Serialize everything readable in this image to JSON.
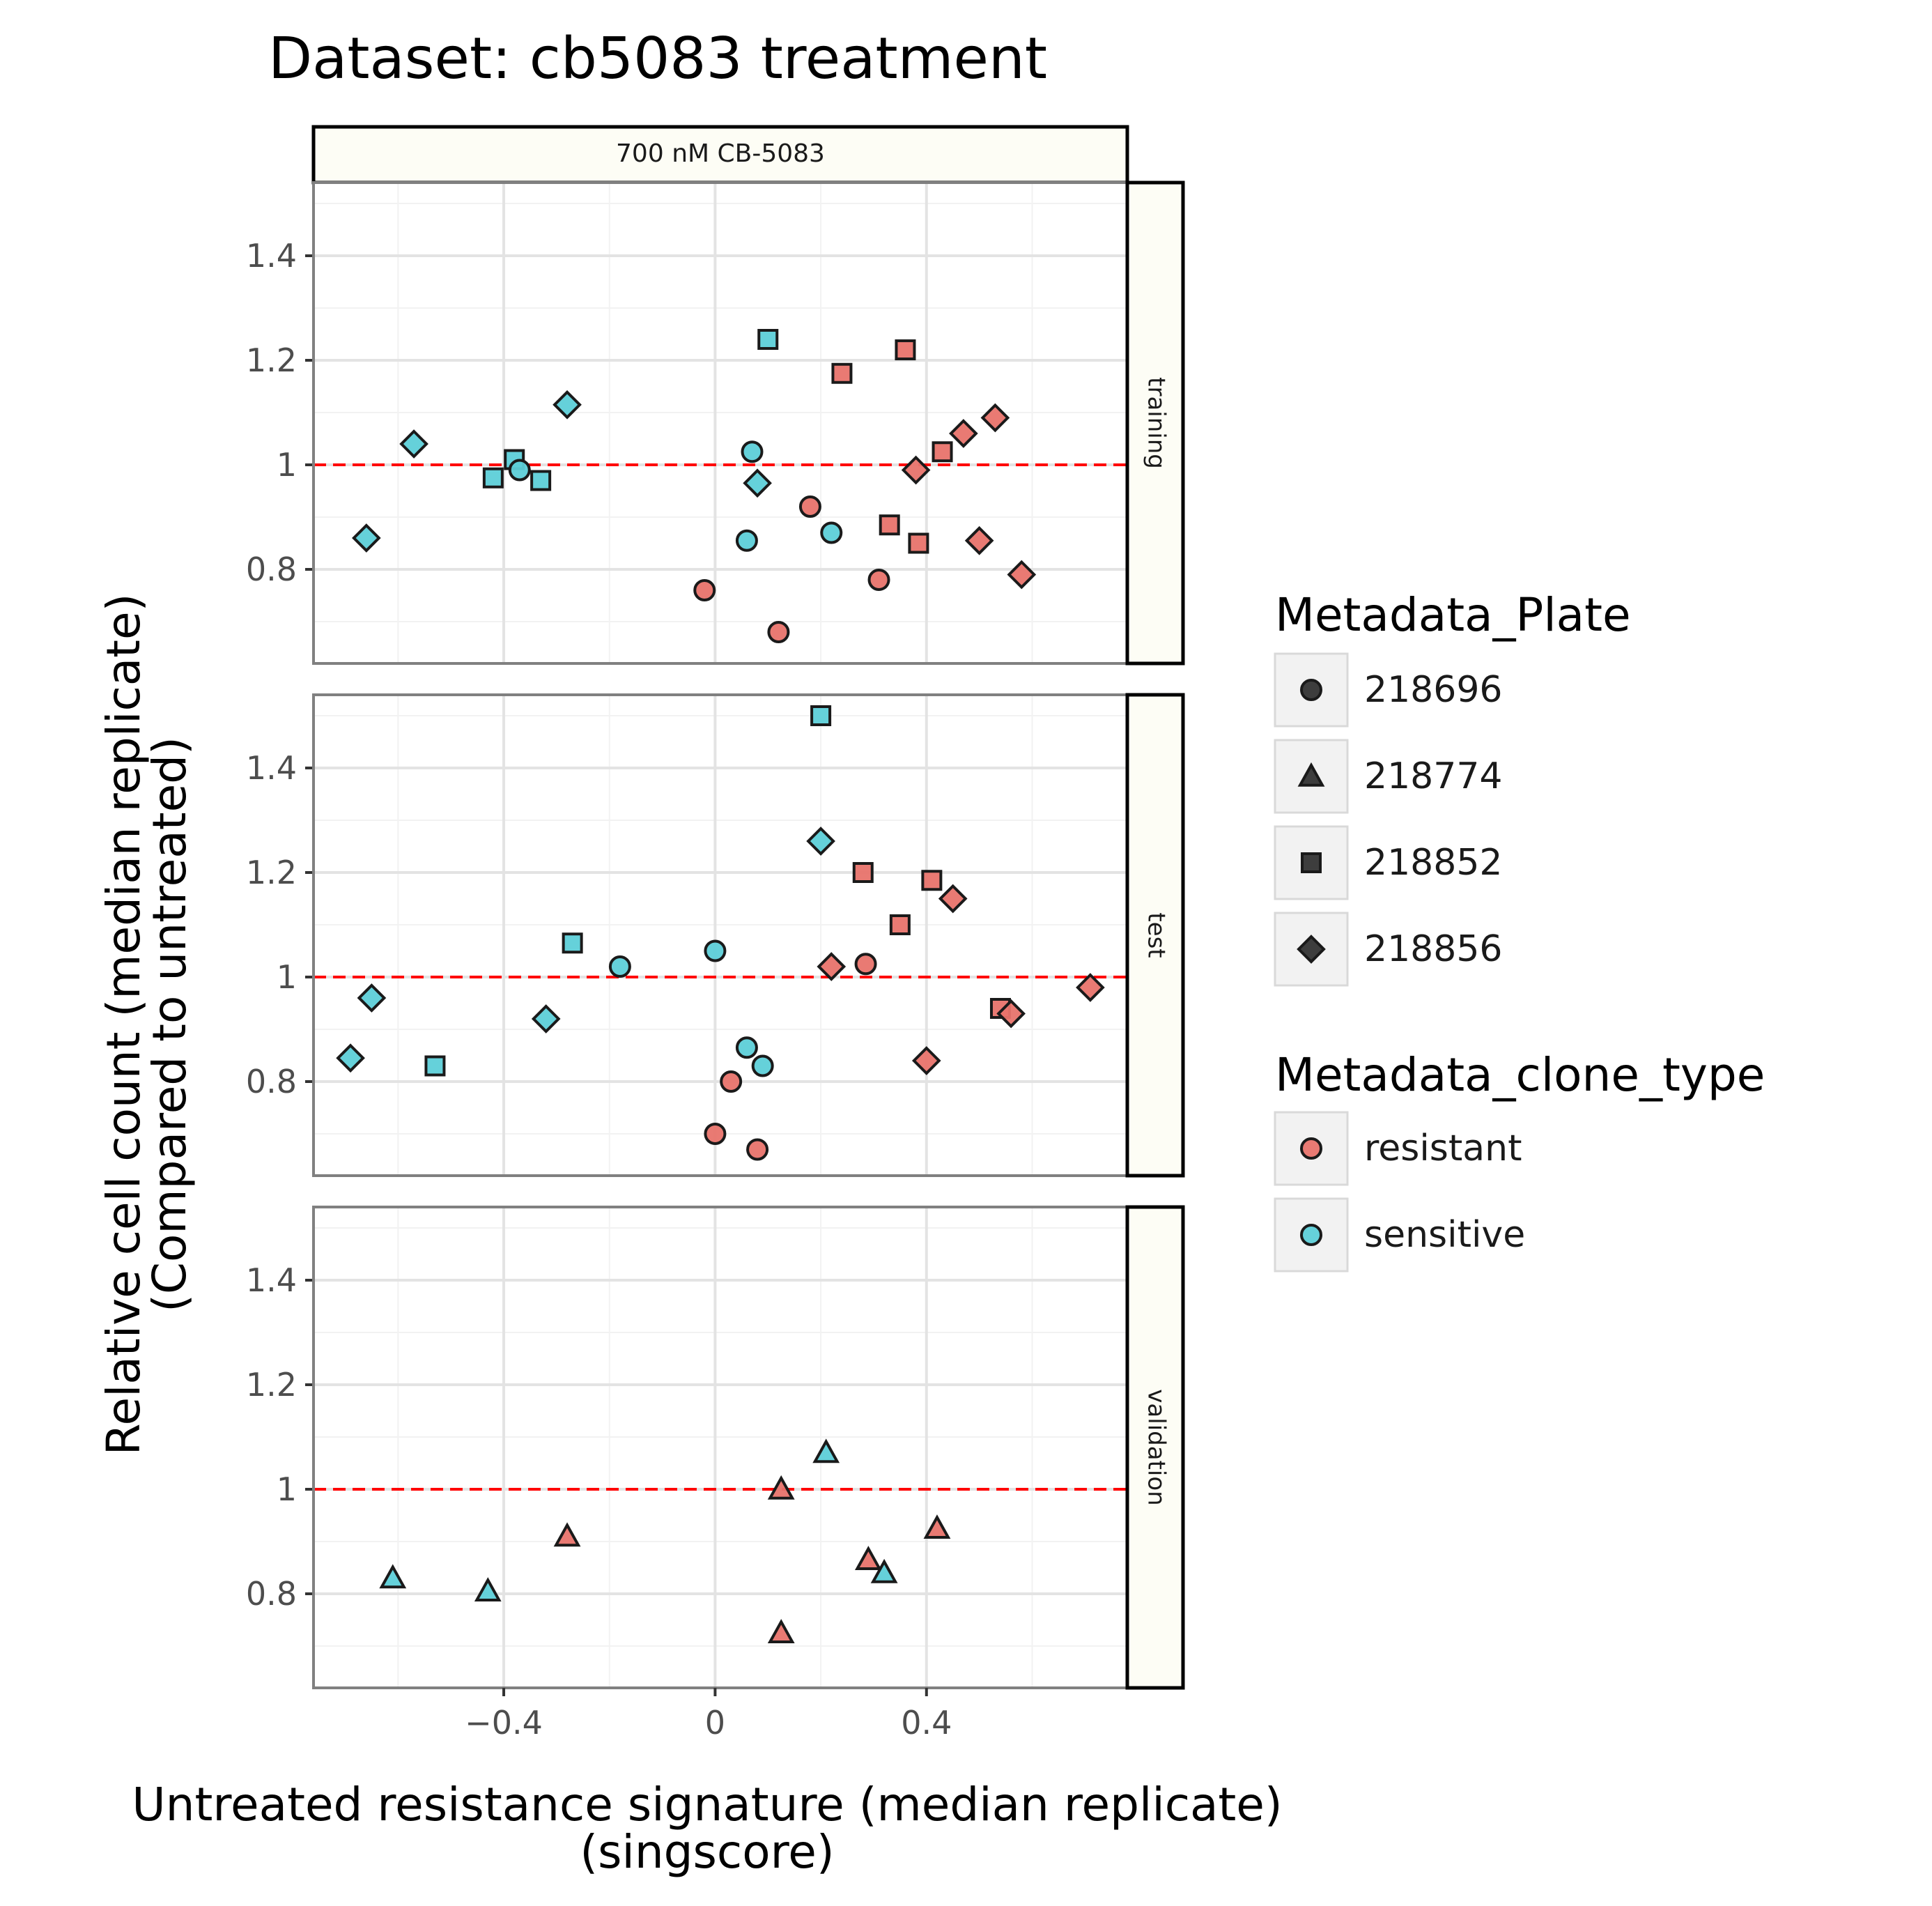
{
  "chart_data": {
    "type": "scatter",
    "title": "Dataset: cb5083 treatment",
    "column_strip": "700 nM CB-5083",
    "xlabel_line1": "Untreated resistance signature (median replicate)",
    "xlabel_line2": "(singscore)",
    "ylabel_line1": "Relative cell count (median replicate)",
    "ylabel_line2": "(Compared to untreated)",
    "xlim": [
      -0.76,
      0.78
    ],
    "ylim": [
      0.62,
      1.54
    ],
    "x_ticks": [
      {
        "value": -0.4,
        "label": "−0.4"
      },
      {
        "value": 0,
        "label": "0"
      },
      {
        "value": 0.4,
        "label": "0.4"
      }
    ],
    "y_ticks": [
      {
        "value": 0.8,
        "label": "0.8"
      },
      {
        "value": 1.0,
        "label": "1"
      },
      {
        "value": 1.2,
        "label": "1.2"
      },
      {
        "value": 1.4,
        "label": "1.4"
      }
    ],
    "reference_line": {
      "y": 1.0,
      "color": "#ff0000",
      "style": "dashed"
    },
    "grid": true,
    "colors": {
      "resistant": "#e8736c",
      "sensitive": "#5dcfd8",
      "strip_fill": "#fdfdf5",
      "ref_line": "#ff0000"
    },
    "legend": {
      "position": "right",
      "shape_title": "Metadata_Plate",
      "shape_entries": [
        {
          "label": "218696",
          "shape": "circle"
        },
        {
          "label": "218774",
          "shape": "triangle"
        },
        {
          "label": "218852",
          "shape": "square"
        },
        {
          "label": "218856",
          "shape": "diamond"
        }
      ],
      "color_title": "Metadata_clone_type",
      "color_entries": [
        {
          "label": "resistant",
          "type": "resistant"
        },
        {
          "label": "sensitive",
          "type": "sensitive"
        }
      ]
    },
    "panels": [
      {
        "label": "training",
        "points": [
          {
            "x": -0.66,
            "y": 0.86,
            "shape": "diamond",
            "type": "sensitive"
          },
          {
            "x": -0.57,
            "y": 1.04,
            "shape": "diamond",
            "type": "sensitive"
          },
          {
            "x": -0.42,
            "y": 0.975,
            "shape": "square",
            "type": "sensitive"
          },
          {
            "x": -0.38,
            "y": 1.01,
            "shape": "square",
            "type": "sensitive"
          },
          {
            "x": -0.37,
            "y": 0.99,
            "shape": "circle",
            "type": "sensitive"
          },
          {
            "x": -0.33,
            "y": 0.97,
            "shape": "square",
            "type": "sensitive"
          },
          {
            "x": -0.28,
            "y": 1.115,
            "shape": "diamond",
            "type": "sensitive"
          },
          {
            "x": -0.02,
            "y": 0.76,
            "shape": "circle",
            "type": "resistant"
          },
          {
            "x": 0.06,
            "y": 0.855,
            "shape": "circle",
            "type": "sensitive"
          },
          {
            "x": 0.07,
            "y": 1.025,
            "shape": "circle",
            "type": "sensitive"
          },
          {
            "x": 0.08,
            "y": 0.965,
            "shape": "diamond",
            "type": "sensitive"
          },
          {
            "x": 0.1,
            "y": 1.24,
            "shape": "square",
            "type": "sensitive"
          },
          {
            "x": 0.12,
            "y": 0.68,
            "shape": "circle",
            "type": "resistant"
          },
          {
            "x": 0.18,
            "y": 0.92,
            "shape": "circle",
            "type": "resistant"
          },
          {
            "x": 0.22,
            "y": 0.87,
            "shape": "circle",
            "type": "sensitive"
          },
          {
            "x": 0.24,
            "y": 1.175,
            "shape": "square",
            "type": "resistant"
          },
          {
            "x": 0.31,
            "y": 0.78,
            "shape": "circle",
            "type": "resistant"
          },
          {
            "x": 0.33,
            "y": 0.885,
            "shape": "square",
            "type": "resistant"
          },
          {
            "x": 0.36,
            "y": 1.22,
            "shape": "square",
            "type": "resistant"
          },
          {
            "x": 0.38,
            "y": 0.99,
            "shape": "diamond",
            "type": "resistant"
          },
          {
            "x": 0.385,
            "y": 0.85,
            "shape": "square",
            "type": "resistant"
          },
          {
            "x": 0.43,
            "y": 1.025,
            "shape": "square",
            "type": "resistant"
          },
          {
            "x": 0.47,
            "y": 1.06,
            "shape": "diamond",
            "type": "resistant"
          },
          {
            "x": 0.5,
            "y": 0.855,
            "shape": "diamond",
            "type": "resistant"
          },
          {
            "x": 0.53,
            "y": 1.09,
            "shape": "diamond",
            "type": "resistant"
          },
          {
            "x": 0.58,
            "y": 0.79,
            "shape": "diamond",
            "type": "resistant"
          }
        ]
      },
      {
        "label": "test",
        "points": [
          {
            "x": -0.69,
            "y": 0.845,
            "shape": "diamond",
            "type": "sensitive"
          },
          {
            "x": -0.65,
            "y": 0.96,
            "shape": "diamond",
            "type": "sensitive"
          },
          {
            "x": -0.53,
            "y": 0.83,
            "shape": "square",
            "type": "sensitive"
          },
          {
            "x": -0.32,
            "y": 0.92,
            "shape": "diamond",
            "type": "sensitive"
          },
          {
            "x": -0.27,
            "y": 1.065,
            "shape": "square",
            "type": "sensitive"
          },
          {
            "x": -0.18,
            "y": 1.02,
            "shape": "circle",
            "type": "sensitive"
          },
          {
            "x": 0.0,
            "y": 1.05,
            "shape": "circle",
            "type": "sensitive"
          },
          {
            "x": 0.0,
            "y": 0.7,
            "shape": "circle",
            "type": "resistant"
          },
          {
            "x": 0.03,
            "y": 0.8,
            "shape": "circle",
            "type": "resistant"
          },
          {
            "x": 0.06,
            "y": 0.865,
            "shape": "circle",
            "type": "sensitive"
          },
          {
            "x": 0.08,
            "y": 0.67,
            "shape": "circle",
            "type": "resistant"
          },
          {
            "x": 0.09,
            "y": 0.83,
            "shape": "circle",
            "type": "sensitive"
          },
          {
            "x": 0.2,
            "y": 1.5,
            "shape": "square",
            "type": "sensitive"
          },
          {
            "x": 0.2,
            "y": 1.26,
            "shape": "diamond",
            "type": "sensitive"
          },
          {
            "x": 0.22,
            "y": 1.02,
            "shape": "diamond",
            "type": "resistant"
          },
          {
            "x": 0.28,
            "y": 1.2,
            "shape": "square",
            "type": "resistant"
          },
          {
            "x": 0.285,
            "y": 1.025,
            "shape": "circle",
            "type": "resistant"
          },
          {
            "x": 0.35,
            "y": 1.1,
            "shape": "square",
            "type": "resistant"
          },
          {
            "x": 0.4,
            "y": 0.84,
            "shape": "diamond",
            "type": "resistant"
          },
          {
            "x": 0.41,
            "y": 1.185,
            "shape": "square",
            "type": "resistant"
          },
          {
            "x": 0.45,
            "y": 1.15,
            "shape": "diamond",
            "type": "resistant"
          },
          {
            "x": 0.54,
            "y": 0.94,
            "shape": "square",
            "type": "resistant"
          },
          {
            "x": 0.56,
            "y": 0.93,
            "shape": "diamond",
            "type": "resistant"
          },
          {
            "x": 0.71,
            "y": 0.98,
            "shape": "diamond",
            "type": "resistant"
          }
        ]
      },
      {
        "label": "validation",
        "points": [
          {
            "x": -0.61,
            "y": 0.83,
            "shape": "triangle",
            "type": "sensitive"
          },
          {
            "x": -0.43,
            "y": 0.805,
            "shape": "triangle",
            "type": "sensitive"
          },
          {
            "x": -0.28,
            "y": 0.91,
            "shape": "triangle",
            "type": "resistant"
          },
          {
            "x": 0.125,
            "y": 1.0,
            "shape": "triangle",
            "type": "resistant"
          },
          {
            "x": 0.125,
            "y": 0.725,
            "shape": "triangle",
            "type": "resistant"
          },
          {
            "x": 0.21,
            "y": 1.07,
            "shape": "triangle",
            "type": "sensitive"
          },
          {
            "x": 0.29,
            "y": 0.865,
            "shape": "triangle",
            "type": "resistant"
          },
          {
            "x": 0.32,
            "y": 0.84,
            "shape": "triangle",
            "type": "sensitive"
          },
          {
            "x": 0.42,
            "y": 0.925,
            "shape": "triangle",
            "type": "resistant"
          }
        ]
      }
    ]
  }
}
